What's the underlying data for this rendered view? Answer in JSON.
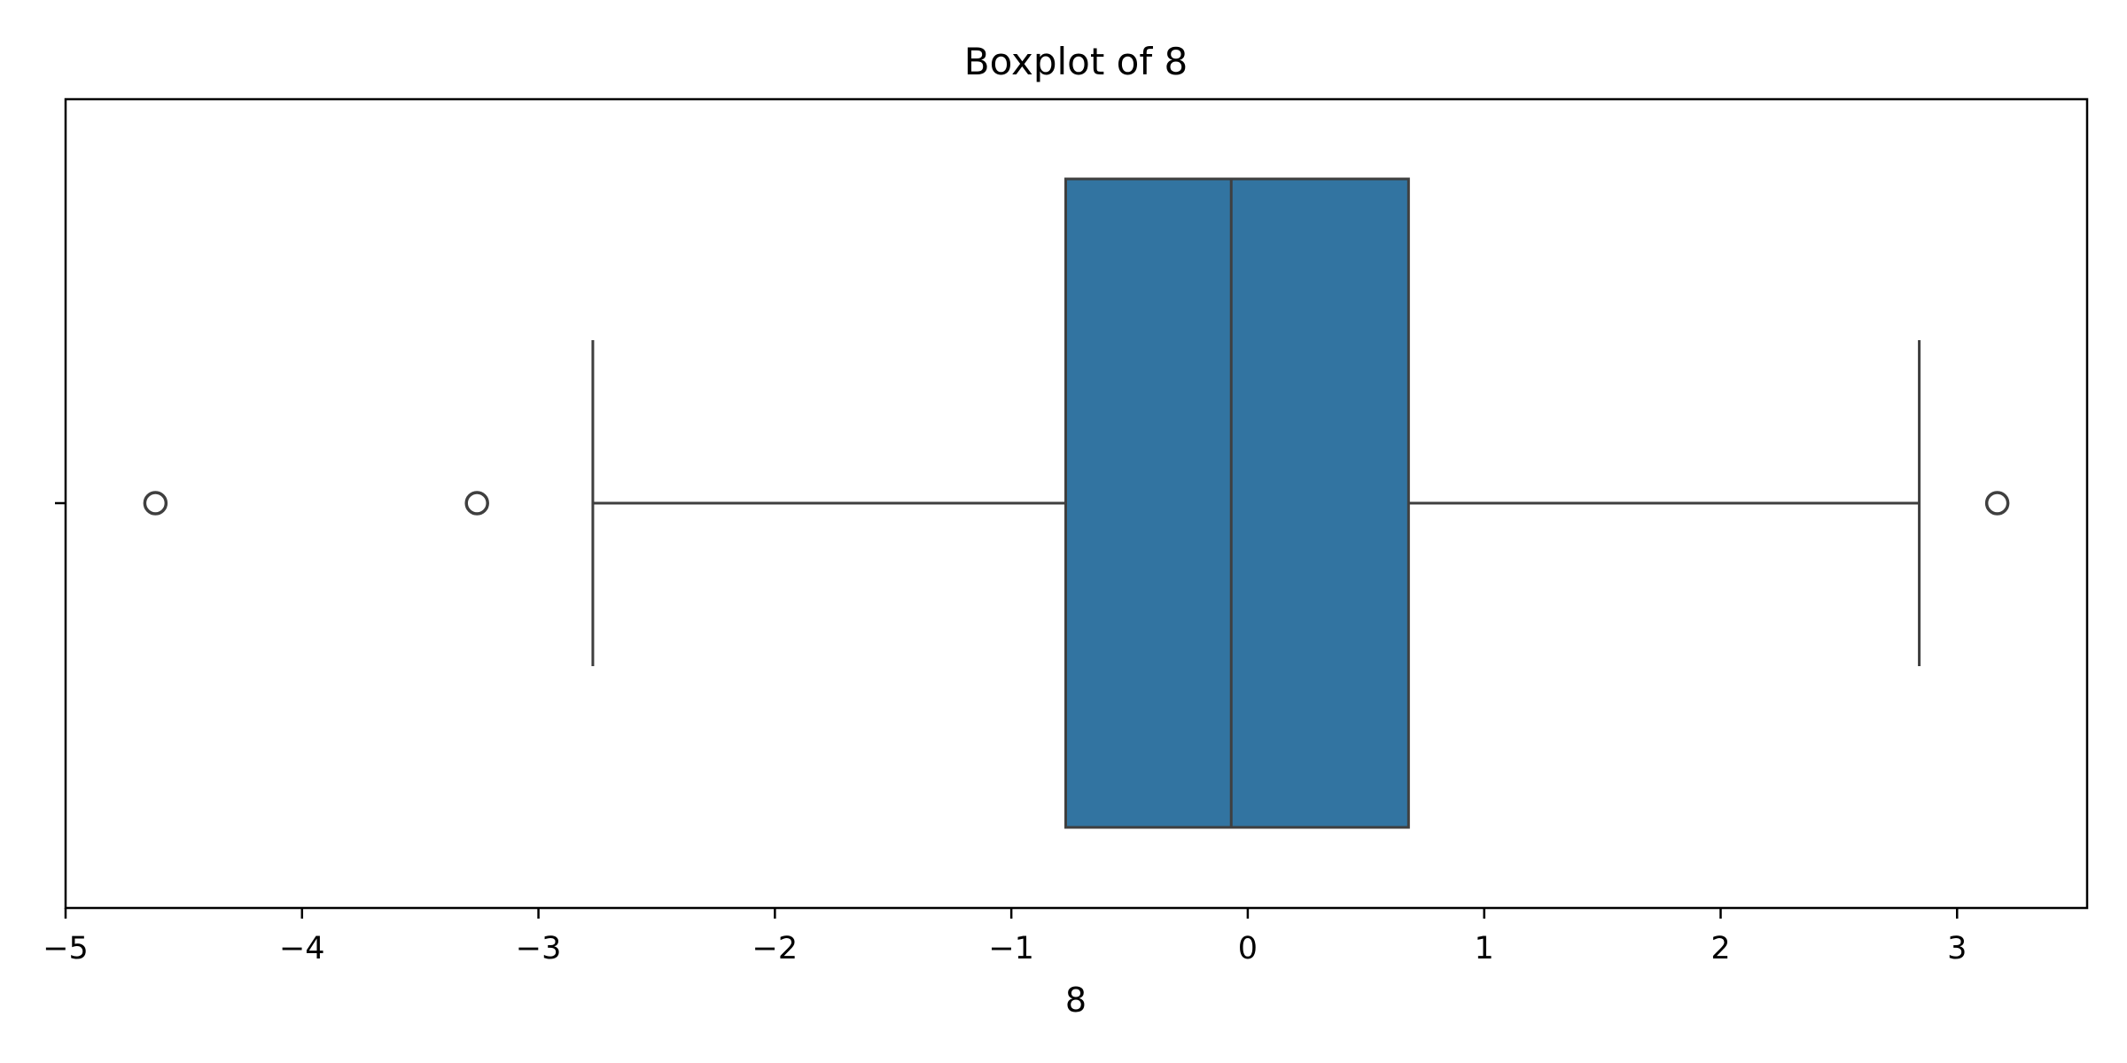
{
  "chart_data": {
    "type": "boxplot",
    "title": "Boxplot of 8",
    "xlabel": "8",
    "ylabel": "",
    "orientation": "horizontal",
    "xlim": [
      -5.0,
      3.55
    ],
    "xticks": [
      -5,
      -4,
      -3,
      -2,
      -1,
      0,
      1,
      2,
      3
    ],
    "xtick_labels": [
      "−5",
      "−4",
      "−3",
      "−2",
      "−1",
      "0",
      "1",
      "2",
      "3"
    ],
    "grid": false,
    "legend": "none",
    "box": {
      "whisker_low": -2.77,
      "q1": -0.77,
      "median": -0.07,
      "q3": 0.68,
      "whisker_high": 2.84
    },
    "outliers": [
      -4.62,
      -3.26,
      3.17
    ],
    "colors": {
      "box_fill": "#3274a1",
      "line": "#3f3f3f",
      "frame": "#000000",
      "background": "#ffffff"
    }
  }
}
